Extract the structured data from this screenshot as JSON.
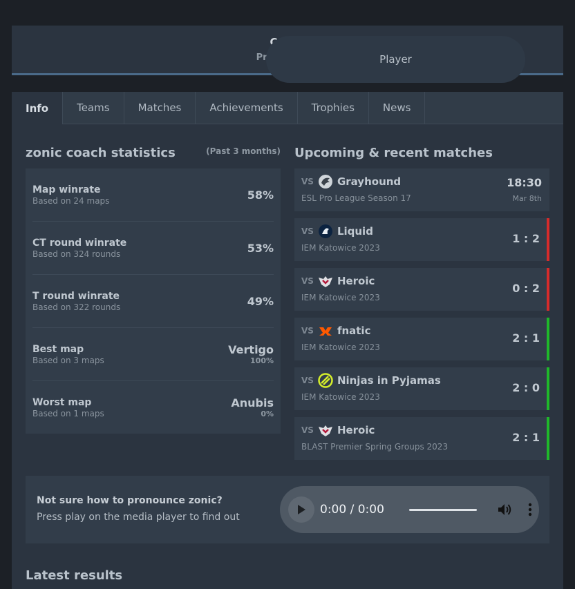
{
  "roles": {
    "player_label": "Player",
    "coach_label": "Coach",
    "coach_sub": "Primary role"
  },
  "nav": [
    "Info",
    "Teams",
    "Matches",
    "Achievements",
    "Trophies",
    "News"
  ],
  "stats": {
    "title": "zonic coach statistics",
    "note": "(Past 3 months)",
    "items": [
      {
        "label": "Map winrate",
        "sub": "Based on 24 maps",
        "value": "58%",
        "pct": ""
      },
      {
        "label": "CT round winrate",
        "sub": "Based on 324 rounds",
        "value": "53%",
        "pct": ""
      },
      {
        "label": "T round winrate",
        "sub": "Based on 322 rounds",
        "value": "49%",
        "pct": ""
      },
      {
        "label": "Best map",
        "sub": "Based on 3 maps",
        "value": "Vertigo",
        "pct": "100%"
      },
      {
        "label": "Worst map",
        "sub": "Based on 1 maps",
        "value": "Anubis",
        "pct": "0%"
      }
    ]
  },
  "matches": {
    "title": "Upcoming & recent matches",
    "vs_label": "VS",
    "upcoming": {
      "team": "Grayhound",
      "event": "ESL Pro League Season 17",
      "time": "18:30",
      "date": "Mar 8th",
      "logo": "grayhound-logo-icon"
    },
    "recent": [
      {
        "team": "Liquid",
        "event": "IEM Katowice 2023",
        "score": "1 : 2",
        "result": "loss",
        "logo": "liquid-logo-icon"
      },
      {
        "team": "Heroic",
        "event": "IEM Katowice 2023",
        "score": "0 : 2",
        "result": "loss",
        "logo": "heroic-logo-icon"
      },
      {
        "team": "fnatic",
        "event": "IEM Katowice 2023",
        "score": "2 : 1",
        "result": "win",
        "logo": "fnatic-logo-icon"
      },
      {
        "team": "Ninjas in Pyjamas",
        "event": "IEM Katowice 2023",
        "score": "2 : 0",
        "result": "win",
        "logo": "nip-logo-icon"
      },
      {
        "team": "Heroic",
        "event": "BLAST Premier Spring Groups 2023",
        "score": "2 : 1",
        "result": "win",
        "logo": "heroic-logo-icon"
      }
    ]
  },
  "pronounce": {
    "question": "Not sure how to pronounce zonic?",
    "answer": "Press play on the media player to find out",
    "time": "0:00 / 0:00"
  },
  "colors": {
    "win": "#1fb82a",
    "loss": "#d62b2b"
  },
  "bottom_title": "Latest results"
}
